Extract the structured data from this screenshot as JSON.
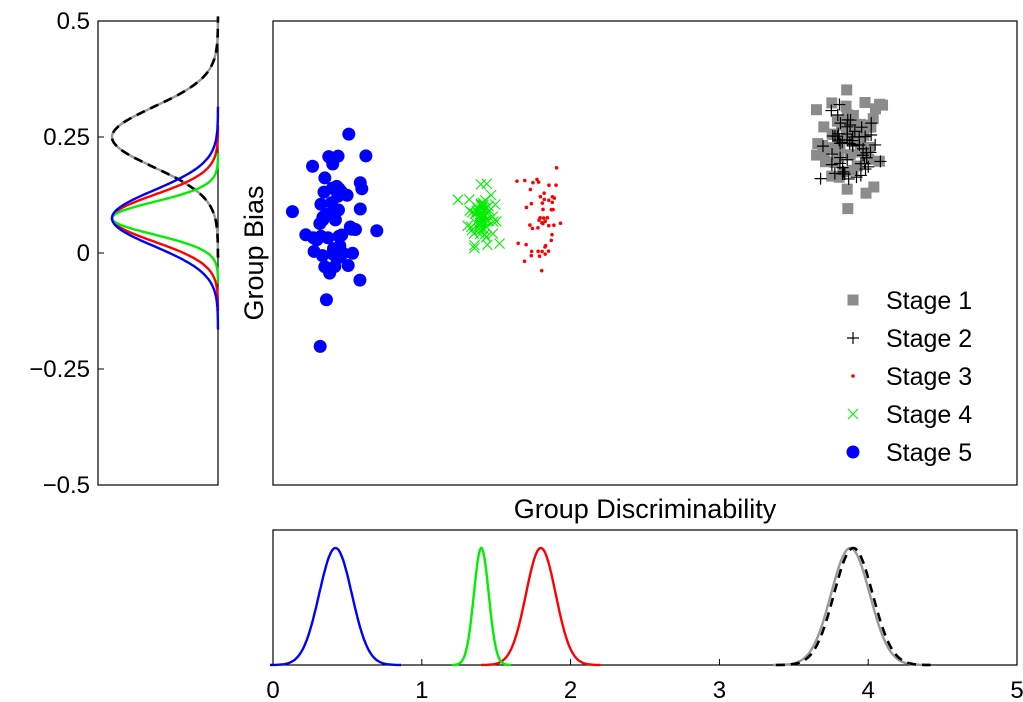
{
  "chart_data": [
    {
      "type": "scatter",
      "panel": "main",
      "xlabel": "Group Discriminability",
      "ylabel": "Group Bias",
      "xlim": [
        0,
        5
      ],
      "ylim": [
        -0.5,
        0.5
      ],
      "grid": false,
      "legend_position": "bottom-right",
      "legend": [
        "Stage 1",
        "Stage 2",
        "Stage 3",
        "Stage 4",
        "Stage 5"
      ],
      "series": [
        {
          "name": "Stage 1",
          "marker": "square",
          "color": "#8c8c8c",
          "x_center": 3.9,
          "x_spread": 0.12,
          "y_center": 0.24,
          "y_spread": 0.055,
          "count": 55
        },
        {
          "name": "Stage 2",
          "marker": "plus",
          "color": "#000000",
          "x_center": 3.87,
          "x_spread": 0.1,
          "y_center": 0.22,
          "y_spread": 0.04,
          "count": 55
        },
        {
          "name": "Stage 3",
          "marker": "dot",
          "color": "#ff0000",
          "x_center": 1.8,
          "x_spread": 0.07,
          "y_center": 0.08,
          "y_spread": 0.07,
          "count": 50
        },
        {
          "name": "Stage 4",
          "marker": "x",
          "color": "#00ee00",
          "x_center": 1.4,
          "x_spread": 0.045,
          "y_center": 0.08,
          "y_spread": 0.03,
          "count": 60
        },
        {
          "name": "Stage 5",
          "marker": "circle",
          "color": "#0000ff",
          "x_center": 0.42,
          "x_spread": 0.1,
          "y_center": 0.07,
          "y_spread": 0.08,
          "count": 55
        }
      ]
    },
    {
      "type": "line",
      "panel": "left-marginal",
      "description_of_axis": "density over Group Bias",
      "ylim": [
        -0.5,
        0.5
      ],
      "yticks": [
        -0.5,
        -0.25,
        0,
        0.25,
        0.5
      ],
      "ytick_labels": [
        "−0.5",
        "−0.25",
        "0",
        "0.25",
        "0.5"
      ],
      "series": [
        {
          "name": "Stage 1",
          "color": "#999999",
          "style": "solid",
          "mean": 0.25,
          "sd": 0.065
        },
        {
          "name": "Stage 2",
          "color": "#000000",
          "style": "dashed",
          "mean": 0.25,
          "sd": 0.065
        },
        {
          "name": "Stage 3",
          "color": "#ff0000",
          "style": "solid",
          "mean": 0.075,
          "sd": 0.05
        },
        {
          "name": "Stage 4",
          "color": "#00ee00",
          "style": "solid",
          "mean": 0.075,
          "sd": 0.035
        },
        {
          "name": "Stage 5",
          "color": "#0000ff",
          "style": "solid",
          "mean": 0.075,
          "sd": 0.06
        }
      ]
    },
    {
      "type": "line",
      "panel": "bottom-marginal",
      "description_of_axis": "density over Group Discriminability",
      "xlim": [
        0,
        5
      ],
      "xticks": [
        0,
        1,
        2,
        3,
        4,
        5
      ],
      "xtick_labels": [
        "0",
        "1",
        "2",
        "3",
        "4",
        "5"
      ],
      "series": [
        {
          "name": "Stage 1",
          "color": "#999999",
          "style": "solid",
          "mean": 3.88,
          "sd": 0.13
        },
        {
          "name": "Stage 2",
          "color": "#000000",
          "style": "dashed",
          "mean": 3.9,
          "sd": 0.13
        },
        {
          "name": "Stage 3",
          "color": "#ff0000",
          "style": "solid",
          "mean": 1.8,
          "sd": 0.1
        },
        {
          "name": "Stage 4",
          "color": "#00ee00",
          "style": "solid",
          "mean": 1.4,
          "sd": 0.05
        },
        {
          "name": "Stage 5",
          "color": "#0000ff",
          "style": "solid",
          "mean": 0.42,
          "sd": 0.11
        }
      ]
    }
  ]
}
